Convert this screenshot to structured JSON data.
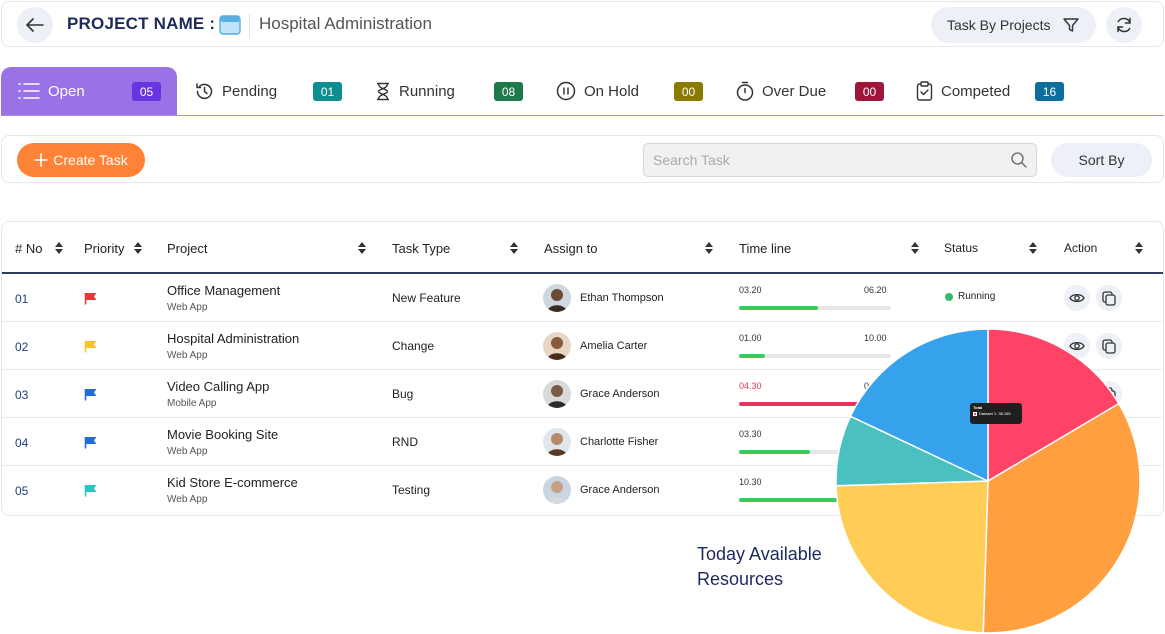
{
  "header": {
    "project_label": "PROJECT NAME :",
    "project_name": "Hospital Administration",
    "filter_label": "Task By Projects"
  },
  "tabs": [
    {
      "label": "Open",
      "count": "05",
      "color": "#6a35e0",
      "icon": "list-icon"
    },
    {
      "label": "Pending",
      "count": "01",
      "color": "#0e8f8f",
      "icon": "history-icon"
    },
    {
      "label": "Running",
      "count": "08",
      "color": "#1e7a4a",
      "icon": "hourglass-icon"
    },
    {
      "label": "On Hold",
      "count": "00",
      "color": "#8a7a00",
      "icon": "pause-icon"
    },
    {
      "label": "Over Due",
      "count": "00",
      "color": "#a0163a",
      "icon": "stopwatch-icon"
    },
    {
      "label": "Competed",
      "count": "16",
      "color": "#0d6e9e",
      "icon": "clipboard-icon"
    }
  ],
  "toolbar": {
    "create_label": "Create Task",
    "search_placeholder": "Search Task",
    "sort_label": "Sort By"
  },
  "table": {
    "columns": [
      "# No",
      "Priority",
      "Project",
      "Task Type",
      "Assign to",
      "Time line",
      "Status",
      "Action"
    ],
    "rows": [
      {
        "no": "01",
        "priority_color": "#e53935",
        "project": "Office Management",
        "project_sub": "Web App",
        "type": "New Feature",
        "assignee": "Ethan Thompson",
        "tl_start": "03.20",
        "tl_end": "06.20",
        "tl_progress": 0.52,
        "tl_color": "#3ccb5a",
        "tl_start_color": "#333333",
        "status": "Running"
      },
      {
        "no": "02",
        "priority_color": "#fbc02d",
        "project": "Hospital Administration",
        "project_sub": "Web App",
        "type": "Change",
        "assignee": "Amelia Carter",
        "tl_start": "01.00",
        "tl_end": "10.00",
        "tl_progress": 0.17,
        "tl_color": "#3ccb5a",
        "tl_start_color": "#333333",
        "status": ""
      },
      {
        "no": "03",
        "priority_color": "#1e6fd9",
        "project": "Video Calling App",
        "project_sub": "Mobile App",
        "type": "Bug",
        "assignee": "Grace Anderson",
        "tl_start": "04.30",
        "tl_end": "0",
        "tl_progress": 0.85,
        "tl_color": "#e8335a",
        "tl_start_color": "#e8335a",
        "status": ""
      },
      {
        "no": "04",
        "priority_color": "#1e6fd9",
        "project": "Movie Booking Site",
        "project_sub": "Web App",
        "type": "RND",
        "assignee": "Charlotte Fisher",
        "tl_start": "03.30",
        "tl_end": "",
        "tl_progress": 0.47,
        "tl_color": "#3ccb5a",
        "tl_start_color": "#333333",
        "status": ""
      },
      {
        "no": "05",
        "priority_color": "#26c6c6",
        "project": "Kid Store E-commerce",
        "project_sub": "Web App",
        "type": "Testing",
        "assignee": "Grace Anderson",
        "tl_start": "10.30",
        "tl_end": "",
        "tl_progress": 0.66,
        "tl_color": "#3ccb5a",
        "tl_start_color": "#333333",
        "status": ""
      }
    ]
  },
  "resources": {
    "title_line1": "Today Available",
    "title_line2": "Resources",
    "tooltip_title": "Total",
    "tooltip_value": "Dataset 1: 38.165",
    "chart_data": {
      "type": "pie",
      "values": [
        16.5,
        34,
        24,
        7.5,
        18
      ],
      "colors": [
        "#ff4366",
        "#ff9f40",
        "#ffcd56",
        "#4bc0c0",
        "#36a2eb"
      ]
    }
  }
}
